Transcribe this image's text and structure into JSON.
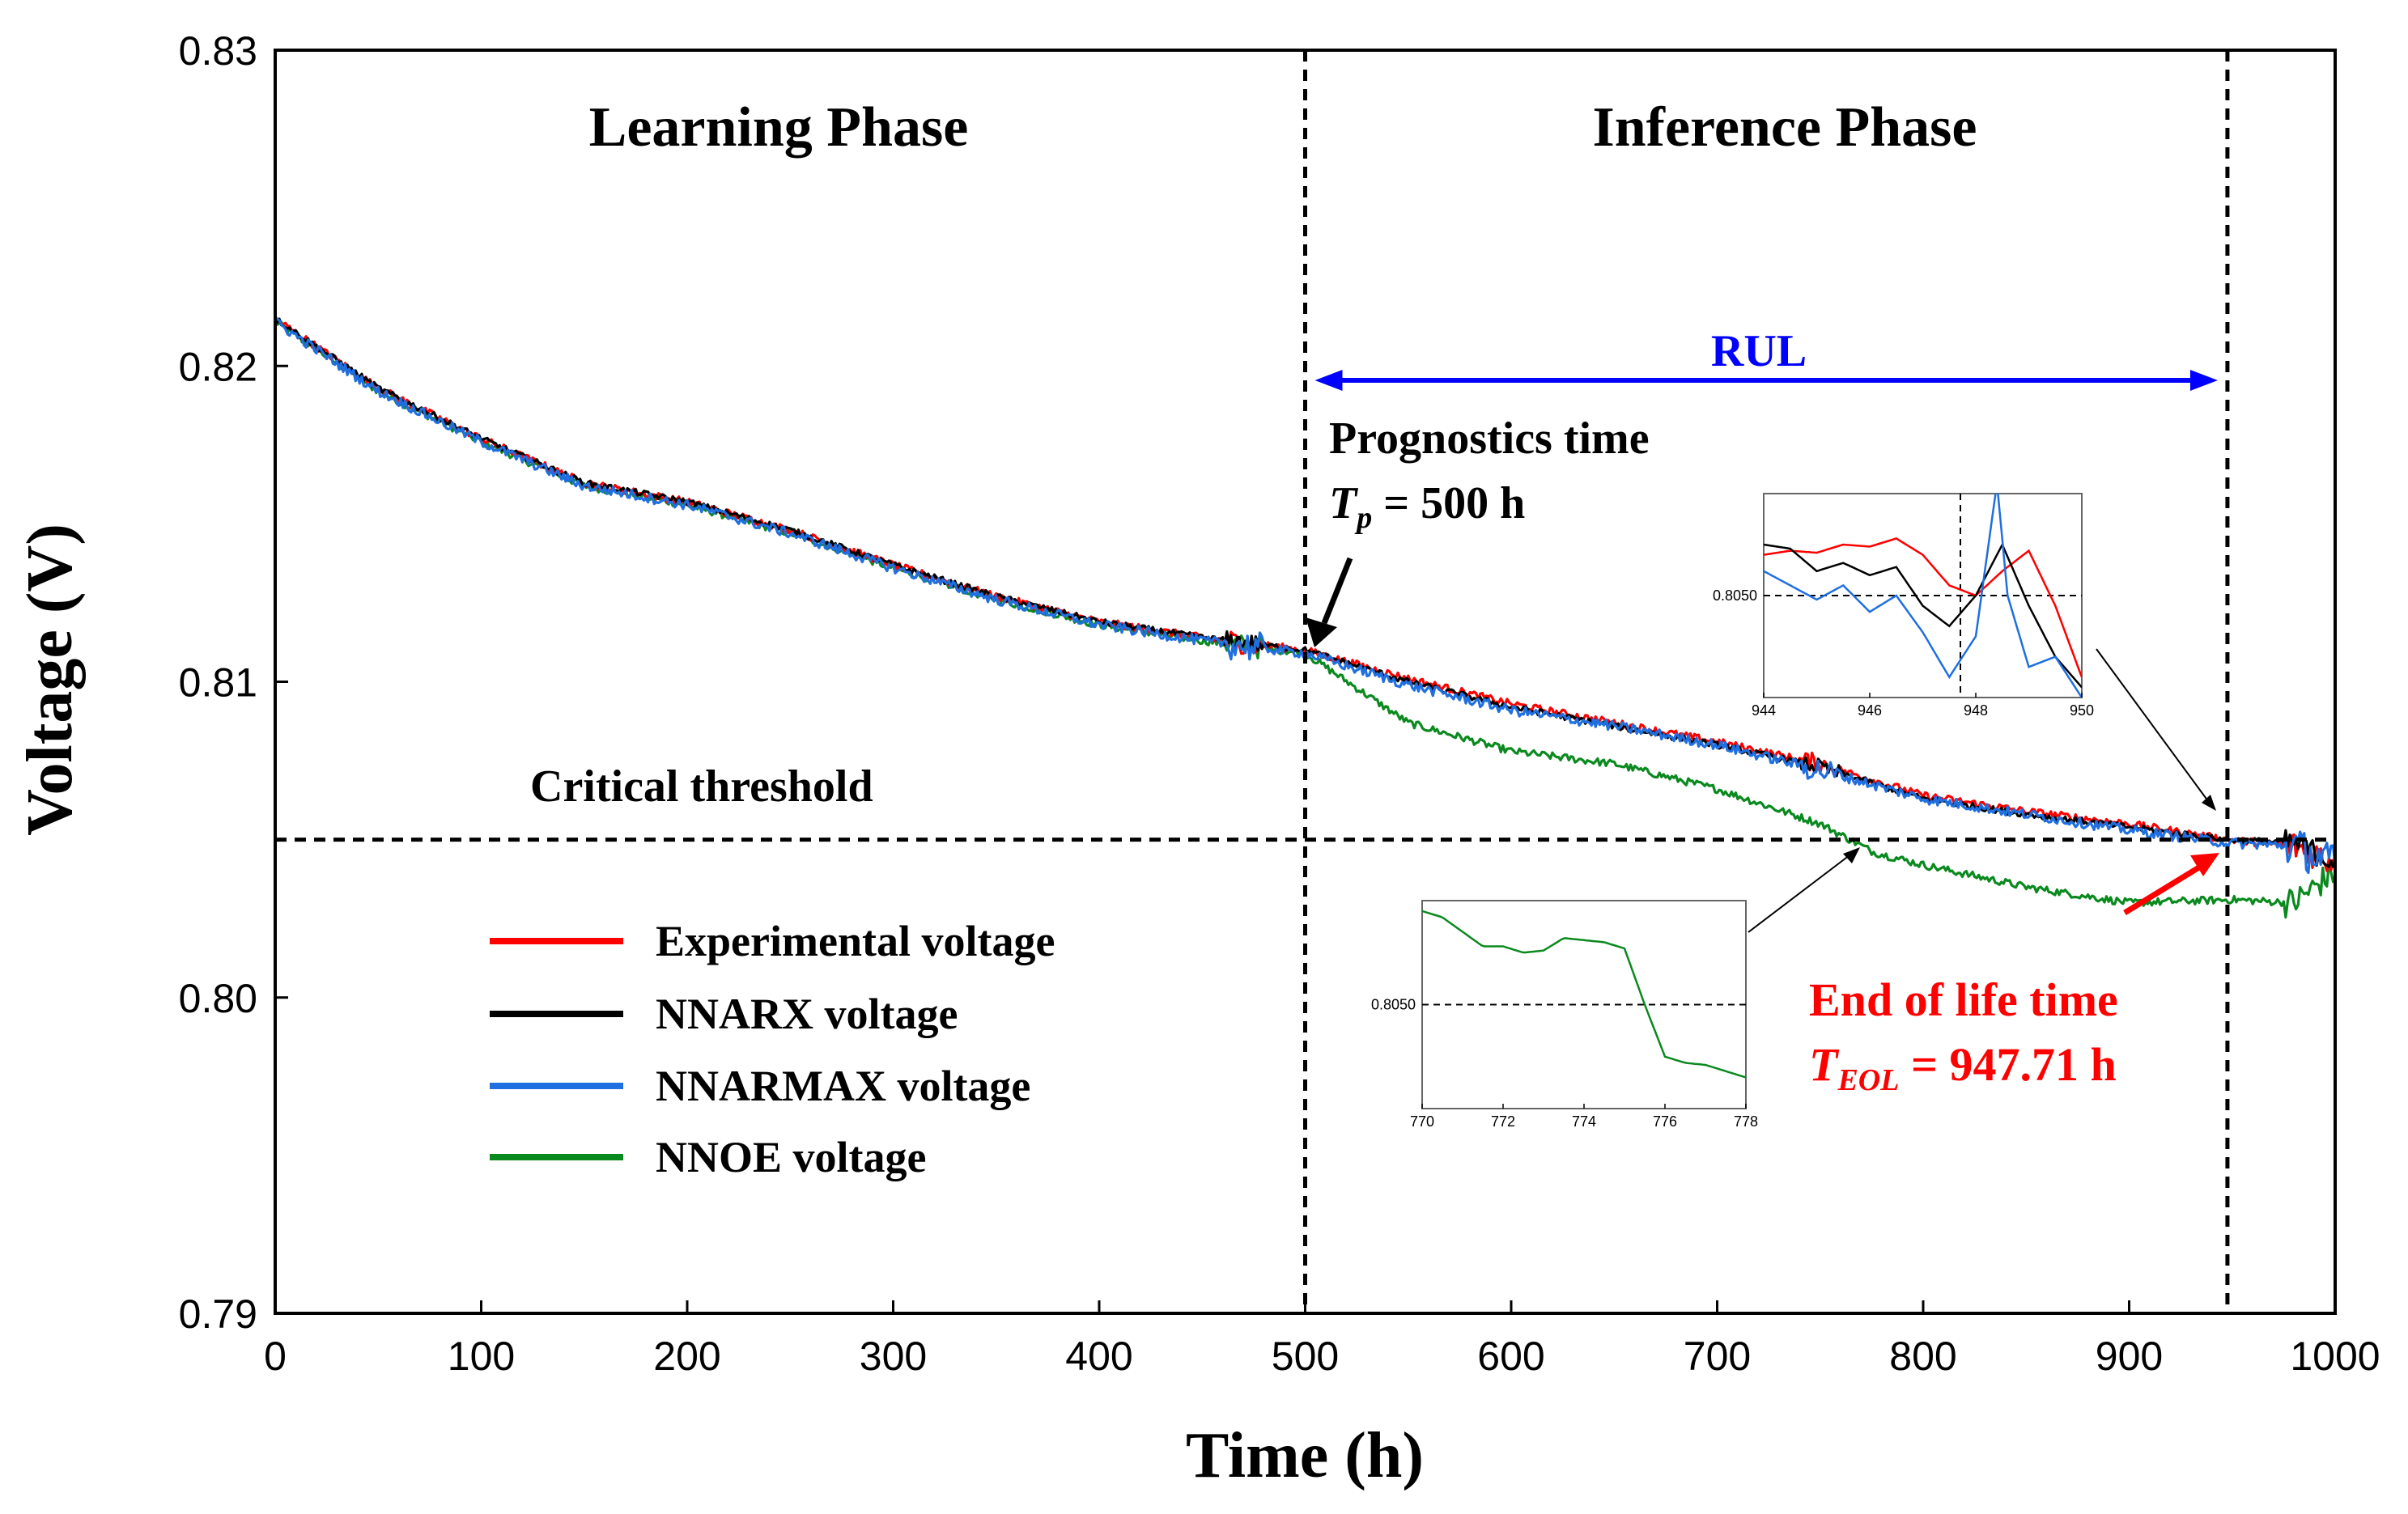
{
  "chart_data": {
    "type": "line",
    "xlabel": "Time (h)",
    "ylabel": "Voltage (V)",
    "xlim": [
      0,
      1000
    ],
    "ylim": [
      0.79,
      0.83
    ],
    "x_ticks": [
      "0",
      "100",
      "200",
      "300",
      "400",
      "500",
      "600",
      "700",
      "800",
      "900",
      "1000"
    ],
    "y_ticks": [
      "0.79",
      "0.80",
      "0.81",
      "0.82",
      "0.83"
    ],
    "phases": [
      "Learning Phase",
      "Inference Phase"
    ],
    "threshold": {
      "label": "Critical threshold",
      "value": 0.805
    },
    "prognostics": {
      "title": "Prognostics time",
      "label_var": "T",
      "label_sub": "p",
      "label_rest": " = 500 h",
      "time": 500
    },
    "rul": {
      "label": "RUL",
      "start": 500,
      "end": 947.71
    },
    "eol": {
      "title": "End of  life time",
      "label_var": "T",
      "label_sub": "EOL",
      "label_rest": " = 947.71 h",
      "time": 947.71
    },
    "series": [
      {
        "name": "Experimental voltage",
        "color": "#ff0000",
        "x": [
          0,
          50,
          100,
          150,
          200,
          250,
          300,
          350,
          400,
          450,
          500,
          550,
          600,
          650,
          700,
          750,
          800,
          850,
          900,
          947.71,
          980,
          1000
        ],
        "values": [
          0.8215,
          0.8193,
          0.8177,
          0.8163,
          0.8157,
          0.8148,
          0.8137,
          0.8127,
          0.8119,
          0.8114,
          0.811,
          0.8101,
          0.8093,
          0.8087,
          0.8081,
          0.8074,
          0.8064,
          0.8059,
          0.8055,
          0.805,
          0.8048,
          0.8043
        ]
      },
      {
        "name": "NNARX voltage",
        "color": "#000000",
        "x": [
          0,
          50,
          100,
          150,
          200,
          250,
          300,
          350,
          400,
          450,
          500,
          550,
          600,
          650,
          700,
          750,
          800,
          850,
          900,
          947.71,
          980,
          1000
        ],
        "values": [
          0.8215,
          0.8193,
          0.8177,
          0.8163,
          0.8157,
          0.8148,
          0.8137,
          0.8127,
          0.8119,
          0.8114,
          0.811,
          0.81,
          0.8092,
          0.8086,
          0.808,
          0.8073,
          0.8063,
          0.8058,
          0.8054,
          0.805,
          0.8049,
          0.8043
        ]
      },
      {
        "name": "NNARMAX voltage",
        "color": "#1f6fe0",
        "x": [
          0,
          50,
          100,
          150,
          200,
          250,
          300,
          350,
          400,
          450,
          500,
          550,
          600,
          650,
          700,
          750,
          800,
          850,
          900,
          947.71,
          980,
          1000
        ],
        "values": [
          0.8214,
          0.8192,
          0.8176,
          0.8162,
          0.8156,
          0.8147,
          0.8136,
          0.8126,
          0.8118,
          0.8113,
          0.8109,
          0.8099,
          0.8091,
          0.8086,
          0.808,
          0.8072,
          0.8063,
          0.8058,
          0.8053,
          0.8049,
          0.8048,
          0.8042
        ]
      },
      {
        "name": "NNOE voltage",
        "color": "#0a8a1e",
        "x": [
          0,
          50,
          100,
          150,
          200,
          250,
          300,
          350,
          400,
          450,
          500,
          550,
          600,
          650,
          700,
          750,
          776,
          800,
          850,
          900,
          950,
          980,
          1000
        ],
        "values": [
          0.8214,
          0.8192,
          0.8176,
          0.8162,
          0.8156,
          0.8147,
          0.8136,
          0.8126,
          0.8118,
          0.8113,
          0.8109,
          0.8087,
          0.8078,
          0.8074,
          0.8066,
          0.8055,
          0.8046,
          0.8042,
          0.8035,
          0.803,
          0.8031,
          0.803,
          0.804
        ]
      }
    ],
    "insets": [
      {
        "name": "inset-eol",
        "xlim": [
          944,
          950
        ],
        "x_ticks": [
          "944",
          "946",
          "948",
          "950"
        ],
        "y_tick": "0.8050",
        "vline": 947.71,
        "series": [
          {
            "name": "Experimental voltage",
            "color": "#ff0000",
            "x": [
              944,
              944.5,
              945,
              945.5,
              946,
              946.5,
              947,
              947.5,
              948,
              948.5,
              949,
              949.5,
              950
            ],
            "values": [
              0.7,
              0.72,
              0.71,
              0.75,
              0.74,
              0.78,
              0.7,
              0.55,
              0.5,
              0.62,
              0.72,
              0.45,
              0.1
            ]
          },
          {
            "name": "NNARX voltage",
            "color": "#000000",
            "x": [
              944,
              944.5,
              945,
              945.5,
              946,
              946.5,
              947,
              947.5,
              948,
              948.5,
              949,
              949.5,
              950
            ],
            "values": [
              0.75,
              0.73,
              0.62,
              0.66,
              0.6,
              0.64,
              0.45,
              0.35,
              0.5,
              0.75,
              0.45,
              0.2,
              0.05
            ]
          },
          {
            "name": "NNARMAX voltage",
            "color": "#1f6fe0",
            "x": [
              944,
              944.5,
              945,
              945.5,
              946,
              946.5,
              947,
              947.5,
              948,
              948.4,
              948.6,
              949,
              949.5,
              950
            ],
            "values": [
              0.62,
              0.55,
              0.48,
              0.55,
              0.42,
              0.5,
              0.32,
              0.1,
              0.3,
              1.05,
              0.5,
              0.15,
              0.2,
              0.0
            ]
          }
        ]
      },
      {
        "name": "inset-nnoe",
        "xlim": [
          770,
          778
        ],
        "x_ticks": [
          "770",
          "772",
          "774",
          "776",
          "778"
        ],
        "y_tick": "0.8050",
        "series": [
          {
            "name": "NNOE voltage",
            "color": "#0a8a1e",
            "x": [
              770,
              770.5,
              771,
              771.5,
              772,
              772.5,
              773,
              773.5,
              774,
              774.5,
              775,
              775.5,
              776,
              776.5,
              777,
              777.5,
              778
            ],
            "values": [
              0.95,
              0.92,
              0.85,
              0.78,
              0.78,
              0.75,
              0.76,
              0.82,
              0.81,
              0.8,
              0.77,
              0.5,
              0.25,
              0.22,
              0.21,
              0.18,
              0.15
            ]
          }
        ]
      }
    ]
  }
}
